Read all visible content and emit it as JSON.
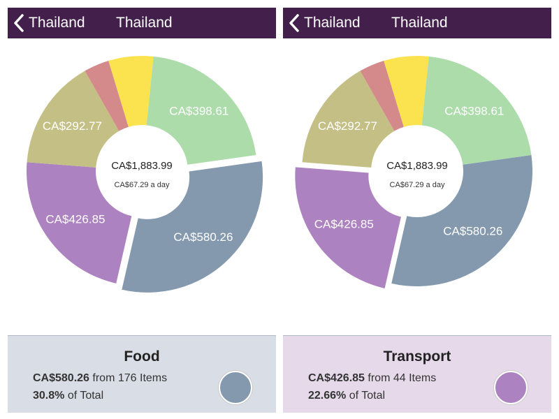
{
  "colors": {
    "nav_bg": "#43204b",
    "food": "#8499ae",
    "transport": "#ad82c0",
    "olive": "#c4bf85",
    "pink": "#d48a8a",
    "yellow": "#fbe34f",
    "green": "#abdcaa",
    "food_card_bg": "#d9dee6",
    "transport_card_bg": "#e6daea"
  },
  "panels": [
    {
      "nav": {
        "back_label": "Thailand",
        "title": "Thailand"
      },
      "center": {
        "total": "CA$1,883.99",
        "daily": "CA$67.29 a day"
      },
      "slices": [
        {
          "label": "CA$580.26",
          "value": 580.26,
          "color": "#8499ae",
          "exploded": true
        },
        {
          "label": "CA$426.85",
          "value": 426.85,
          "color": "#ad82c0",
          "exploded": false
        },
        {
          "label": "CA$292.77",
          "value": 292.77,
          "color": "#c4bf85",
          "exploded": false
        },
        {
          "label": "",
          "value": 67.0,
          "color": "#d48a8a",
          "exploded": false
        },
        {
          "label": "",
          "value": 118.5,
          "color": "#fbe34f",
          "exploded": false
        },
        {
          "label": "CA$398.61",
          "value": 398.61,
          "color": "#abdcaa",
          "exploded": false
        }
      ],
      "card": {
        "title": "Food",
        "amount": "CA$580.26",
        "items_text": "from 176 Items",
        "percent": "30.8%",
        "percent_suffix": "of Total",
        "bg": "#d9dee6",
        "swatch": "#8499ae"
      }
    },
    {
      "nav": {
        "back_label": "Thailand",
        "title": "Thailand"
      },
      "center": {
        "total": "CA$1,883.99",
        "daily": "CA$67.29 a day"
      },
      "slices": [
        {
          "label": "CA$580.26",
          "value": 580.26,
          "color": "#8499ae",
          "exploded": false
        },
        {
          "label": "CA$426.85",
          "value": 426.85,
          "color": "#ad82c0",
          "exploded": true
        },
        {
          "label": "CA$292.77",
          "value": 292.77,
          "color": "#c4bf85",
          "exploded": false
        },
        {
          "label": "",
          "value": 67.0,
          "color": "#d48a8a",
          "exploded": false
        },
        {
          "label": "",
          "value": 118.5,
          "color": "#fbe34f",
          "exploded": false
        },
        {
          "label": "CA$398.61",
          "value": 398.61,
          "color": "#abdcaa",
          "exploded": false
        }
      ],
      "card": {
        "title": "Transport",
        "amount": "CA$426.85",
        "items_text": "from 44 Items",
        "percent": "22.66%",
        "percent_suffix": "of Total",
        "bg": "#e6daea",
        "swatch": "#ad82c0"
      }
    }
  ]
}
